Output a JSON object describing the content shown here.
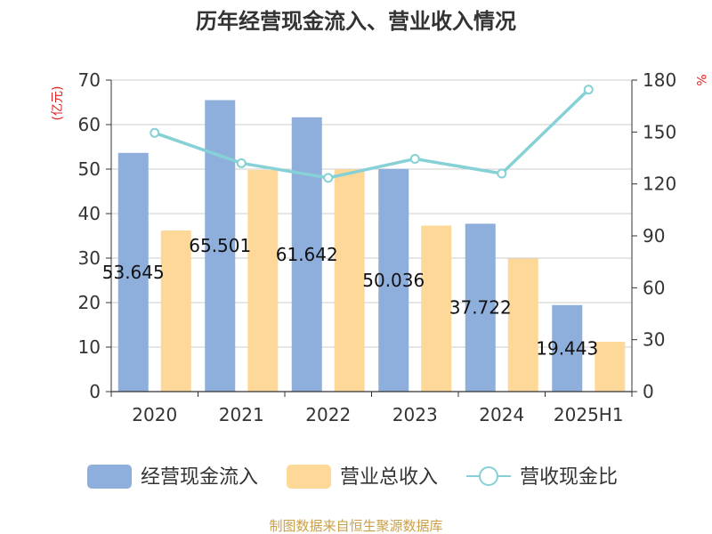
{
  "chart_data": {
    "type": "bar",
    "title": "历年经营现金流入、营业收入情况",
    "categories": [
      "2020",
      "2021",
      "2022",
      "2023",
      "2024",
      "2025H1"
    ],
    "series": [
      {
        "name": "经营现金流入",
        "kind": "bar",
        "axis": "left",
        "color": "#8eaedb",
        "values": [
          53.645,
          65.501,
          61.642,
          50.036,
          37.722,
          19.443
        ],
        "labels": [
          "53.645",
          "65.501",
          "61.642",
          "50.036",
          "37.722",
          "19.443"
        ]
      },
      {
        "name": "营业总收入",
        "kind": "bar",
        "axis": "left",
        "color": "#fed899",
        "values": [
          36.2,
          49.8,
          50.0,
          37.3,
          29.9,
          11.2
        ]
      },
      {
        "name": "营收现金比",
        "kind": "line",
        "axis": "right",
        "color": "#86d1d6",
        "values": [
          149.5,
          132.0,
          123.5,
          134.5,
          126.0,
          174.5
        ]
      }
    ],
    "y_left": {
      "unit": "(亿元)",
      "unit_color": "#e02020",
      "min": 0,
      "max": 70,
      "ticks": [
        "0",
        "10",
        "20",
        "30",
        "40",
        "50",
        "60",
        "70"
      ]
    },
    "y_right": {
      "unit": "%",
      "unit_color": "#e02020",
      "min": 0,
      "max": 180,
      "ticks": [
        "0",
        "30",
        "60",
        "90",
        "120",
        "150",
        "180"
      ]
    },
    "grid": true,
    "legend_position": "bottom"
  },
  "source": {
    "text": "制图数据来自恒生聚源数据库",
    "color": "#c8a04a"
  }
}
